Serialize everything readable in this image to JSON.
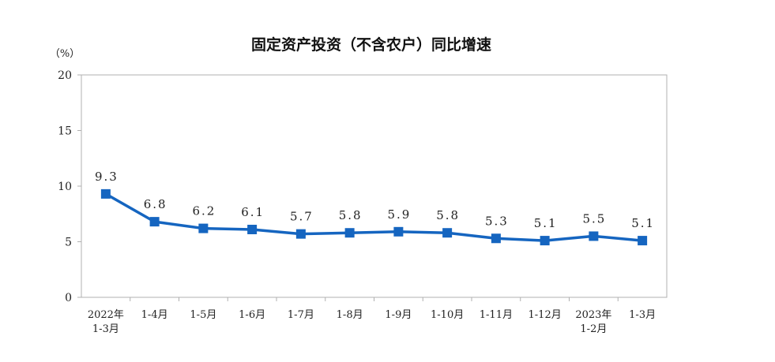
{
  "chart_data": {
    "type": "line",
    "title": "固定资产投资（不含农户）同比增速",
    "ylabel": "（%）",
    "xlabel": "",
    "ylim": [
      0,
      20
    ],
    "yticks": [
      "0",
      "5",
      "10",
      "15",
      "20"
    ],
    "categories": [
      [
        "2022年",
        "1-3月"
      ],
      [
        "1-4月"
      ],
      [
        "1-5月"
      ],
      [
        "1-6月"
      ],
      [
        "1-7月"
      ],
      [
        "1-8月"
      ],
      [
        "1-9月"
      ],
      [
        "1-10月"
      ],
      [
        "1-11月"
      ],
      [
        "1-12月"
      ],
      [
        "2023年",
        "1-2月"
      ],
      [
        "1-3月"
      ]
    ],
    "series": [
      {
        "values": [
          9.3,
          6.8,
          6.2,
          6.1,
          5.7,
          5.8,
          5.9,
          5.8,
          5.3,
          5.1,
          5.5,
          5.1
        ],
        "labels": [
          "9.3",
          "6.8",
          "6.2",
          "6.1",
          "5.7",
          "5.8",
          "5.9",
          "5.8",
          "5.3",
          "5.1",
          "5.5",
          "5.1"
        ],
        "color": "#1565c0"
      }
    ],
    "grid": false,
    "legend": "none"
  }
}
